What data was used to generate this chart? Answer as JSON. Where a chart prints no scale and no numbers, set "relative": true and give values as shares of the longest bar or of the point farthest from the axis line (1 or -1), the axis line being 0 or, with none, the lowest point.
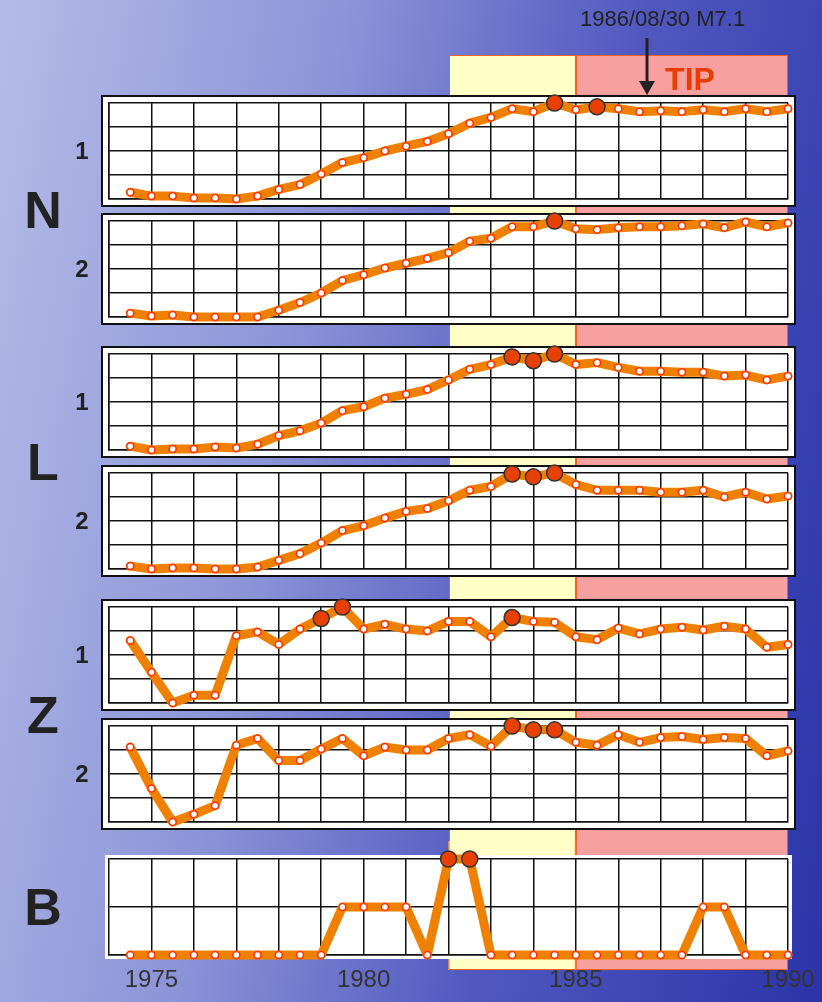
{
  "chart_data": [
    {
      "type": "line",
      "title": "N",
      "ylabel": "1",
      "relative": true,
      "categories": [
        null,
        null,
        null,
        null,
        null,
        null,
        null,
        null,
        null,
        null,
        null,
        null,
        null,
        null,
        null,
        null,
        null,
        null,
        null,
        null,
        null,
        null,
        null,
        null,
        null,
        null,
        null,
        null,
        null,
        null,
        null,
        null
      ],
      "grid": true,
      "marker": "circle",
      "annotations": [
        "1986/08/30 M7.1",
        "TIP"
      ],
      "series": [
        {
          "color": "#f08000",
          "values": [
            0.07,
            0.03,
            0.03,
            0.01,
            0.01,
            0.0,
            0.03,
            0.1,
            0.15,
            0.26,
            0.38,
            0.43,
            0.5,
            0.55,
            0.6,
            0.68,
            0.79,
            0.85,
            0.94,
            0.91,
            1,
            0.93,
            0.96,
            0.94,
            0.91,
            0.92,
            0.91,
            0.93,
            0.91,
            0.94,
            0.91,
            0.94
          ],
          "colors": [
            "#ffffff",
            "#ffffff",
            "#ffffff",
            "#ffffff",
            "#ffffff",
            "#ffffff",
            "#ffffff",
            "#ffffff",
            "#ffffff",
            "#ffffff",
            "#ffffff",
            "#ffffff",
            "#ffffff",
            "#ffffff",
            "#ffffff",
            "#ffffff",
            "#ffffff",
            "#ffffff",
            "#ffffff",
            "#ffffff",
            "#e84000",
            "#ffffff",
            "#e84000",
            "#ffffff",
            "#ffffff",
            "#ffffff",
            "#ffffff",
            "#ffffff",
            "#ffffff",
            "#ffffff",
            "#ffffff",
            "#ffffff"
          ]
        }
      ]
    },
    {
      "type": "line",
      "ylabel": "2",
      "relative": true,
      "categories": [
        null,
        null,
        null,
        null,
        null,
        null,
        null,
        null,
        null,
        null,
        null,
        null,
        null,
        null,
        null,
        null,
        null,
        null,
        null,
        null,
        null,
        null,
        null,
        null,
        null,
        null,
        null,
        null,
        null,
        null,
        null,
        null
      ],
      "grid": true,
      "marker": "circle",
      "series": [
        {
          "color": "#f08000",
          "values": [
            0.04,
            0.01,
            0.02,
            0.0,
            0,
            0,
            0.0,
            0.07,
            0.15,
            0.25,
            0.38,
            0.44,
            0.51,
            0.56,
            0.61,
            0.67,
            0.79,
            0.82,
            0.94,
            0.94,
            1,
            0.92,
            0.91,
            0.93,
            0.94,
            0.94,
            0.95,
            0.97,
            0.93,
            0.99,
            0.94,
            0.98
          ],
          "colors": [
            "#ffffff",
            "#ffffff",
            "#ffffff",
            "#ffffff",
            "#ffffff",
            "#ffffff",
            "#ffffff",
            "#ffffff",
            "#ffffff",
            "#ffffff",
            "#ffffff",
            "#ffffff",
            "#ffffff",
            "#ffffff",
            "#ffffff",
            "#ffffff",
            "#ffffff",
            "#ffffff",
            "#ffffff",
            "#ffffff",
            "#e84000",
            "#ffffff",
            "#ffffff",
            "#ffffff",
            "#ffffff",
            "#ffffff",
            "#ffffff",
            "#ffffff",
            "#ffffff",
            "#ffffff",
            "#ffffff",
            "#ffffff"
          ]
        }
      ]
    },
    {
      "type": "line",
      "title": "L",
      "ylabel": "1",
      "relative": true,
      "categories": [
        null,
        null,
        null,
        null,
        null,
        null,
        null,
        null,
        null,
        null,
        null,
        null,
        null,
        null,
        null,
        null,
        null,
        null,
        null,
        null,
        null,
        null,
        null,
        null,
        null,
        null,
        null,
        null,
        null,
        null,
        null,
        null
      ],
      "grid": true,
      "marker": "circle",
      "series": [
        {
          "color": "#f08000",
          "values": [
            0.04,
            0,
            0.01,
            0.01,
            0.03,
            0.02,
            0.06,
            0.15,
            0.2,
            0.28,
            0.41,
            0.45,
            0.54,
            0.58,
            0.63,
            0.73,
            0.84,
            0.89,
            0.97,
            0.93,
            1,
            0.89,
            0.91,
            0.86,
            0.82,
            0.82,
            0.81,
            0.81,
            0.77,
            0.78,
            0.73,
            0.77
          ],
          "colors": [
            "#ffffff",
            "#ffffff",
            "#ffffff",
            "#ffffff",
            "#ffffff",
            "#ffffff",
            "#ffffff",
            "#ffffff",
            "#ffffff",
            "#ffffff",
            "#ffffff",
            "#ffffff",
            "#ffffff",
            "#ffffff",
            "#ffffff",
            "#ffffff",
            "#ffffff",
            "#ffffff",
            "#e84000",
            "#e84000",
            "#e84000",
            "#ffffff",
            "#ffffff",
            "#ffffff",
            "#ffffff",
            "#ffffff",
            "#ffffff",
            "#ffffff",
            "#ffffff",
            "#ffffff",
            "#ffffff",
            "#ffffff"
          ]
        }
      ]
    },
    {
      "type": "line",
      "ylabel": "2",
      "relative": true,
      "categories": [
        null,
        null,
        null,
        null,
        null,
        null,
        null,
        null,
        null,
        null,
        null,
        null,
        null,
        null,
        null,
        null,
        null,
        null,
        null,
        null,
        null,
        null,
        null,
        null,
        null,
        null,
        null,
        null,
        null,
        null,
        null,
        null
      ],
      "grid": true,
      "marker": "circle",
      "series": [
        {
          "color": "#f08000",
          "values": [
            0.03,
            0,
            0.01,
            0.01,
            0,
            0,
            0.02,
            0.09,
            0.16,
            0.27,
            0.4,
            0.45,
            0.53,
            0.6,
            0.63,
            0.71,
            0.82,
            0.86,
            0.99,
            0.96,
            1,
            0.88,
            0.82,
            0.82,
            0.82,
            0.8,
            0.8,
            0.82,
            0.75,
            0.8,
            0.73,
            0.76
          ],
          "colors": [
            "#ffffff",
            "#ffffff",
            "#ffffff",
            "#ffffff",
            "#ffffff",
            "#ffffff",
            "#ffffff",
            "#ffffff",
            "#ffffff",
            "#ffffff",
            "#ffffff",
            "#ffffff",
            "#ffffff",
            "#ffffff",
            "#ffffff",
            "#ffffff",
            "#ffffff",
            "#ffffff",
            "#e84000",
            "#e84000",
            "#e84000",
            "#ffffff",
            "#ffffff",
            "#ffffff",
            "#ffffff",
            "#ffffff",
            "#ffffff",
            "#ffffff",
            "#ffffff",
            "#ffffff",
            "#ffffff",
            "#ffffff"
          ]
        }
      ]
    },
    {
      "type": "line",
      "title": "Z",
      "ylabel": "1",
      "relative": true,
      "categories": [
        null,
        null,
        null,
        null,
        null,
        null,
        null,
        null,
        null,
        null,
        null,
        null,
        null,
        null,
        null,
        null,
        null,
        null,
        null,
        null,
        null,
        null,
        null,
        null,
        null,
        null,
        null,
        null,
        null,
        null,
        null,
        null
      ],
      "grid": true,
      "marker": "circle",
      "series": [
        {
          "color": "#f08000",
          "values": [
            0.65,
            0.32,
            0,
            0.08,
            0.08,
            0.7,
            0.74,
            0.61,
            0.77,
            0.88,
            1,
            0.77,
            0.82,
            0.77,
            0.75,
            0.85,
            0.85,
            0.69,
            0.89,
            0.85,
            0.84,
            0.69,
            0.66,
            0.78,
            0.72,
            0.77,
            0.79,
            0.76,
            0.8,
            0.77,
            0.58,
            0.61
          ],
          "colors": [
            "#ffffff",
            "#ffffff",
            "#ffffff",
            "#ffffff",
            "#ffffff",
            "#ffffff",
            "#ffffff",
            "#ffffff",
            "#ffffff",
            "#e84000",
            "#e84000",
            "#ffffff",
            "#ffffff",
            "#ffffff",
            "#ffffff",
            "#ffffff",
            "#ffffff",
            "#ffffff",
            "#e84000",
            "#ffffff",
            "#ffffff",
            "#ffffff",
            "#ffffff",
            "#ffffff",
            "#ffffff",
            "#ffffff",
            "#ffffff",
            "#ffffff",
            "#ffffff",
            "#ffffff",
            "#ffffff",
            "#ffffff"
          ]
        }
      ]
    },
    {
      "type": "line",
      "ylabel": "2",
      "relative": true,
      "categories": [
        null,
        null,
        null,
        null,
        null,
        null,
        null,
        null,
        null,
        null,
        null,
        null,
        null,
        null,
        null,
        null,
        null,
        null,
        null,
        null,
        null,
        null,
        null,
        null,
        null,
        null,
        null,
        null,
        null,
        null,
        null,
        null
      ],
      "grid": true,
      "marker": "circle",
      "series": [
        {
          "color": "#f08000",
          "values": [
            0.78,
            0.35,
            0,
            0.08,
            0.17,
            0.8,
            0.87,
            0.64,
            0.64,
            0.76,
            0.87,
            0.69,
            0.78,
            0.75,
            0.75,
            0.87,
            0.91,
            0.79,
            1,
            0.96,
            0.96,
            0.83,
            0.8,
            0.91,
            0.83,
            0.88,
            0.89,
            0.86,
            0.88,
            0.87,
            0.69,
            0.74
          ],
          "colors": [
            "#ffffff",
            "#ffffff",
            "#ffffff",
            "#ffffff",
            "#ffffff",
            "#ffffff",
            "#ffffff",
            "#ffffff",
            "#ffffff",
            "#ffffff",
            "#ffffff",
            "#ffffff",
            "#ffffff",
            "#ffffff",
            "#ffffff",
            "#ffffff",
            "#ffffff",
            "#ffffff",
            "#e84000",
            "#e84000",
            "#e84000",
            "#ffffff",
            "#ffffff",
            "#ffffff",
            "#ffffff",
            "#ffffff",
            "#ffffff",
            "#ffffff",
            "#ffffff",
            "#ffffff",
            "#ffffff",
            "#ffffff"
          ]
        }
      ]
    },
    {
      "type": "line",
      "title": "B",
      "relative": true,
      "x": [
        1974.5,
        1975,
        1975.5,
        1976,
        1976.5,
        1977,
        1977.5,
        1978,
        1978.5,
        1979,
        1979.5,
        1980,
        1980.5,
        1981,
        1981.5,
        1982,
        1982.5,
        1983,
        1983.5,
        1984,
        1984.5,
        1985,
        1985.5,
        1986,
        1986.5,
        1987,
        1987.5,
        1988,
        1988.5,
        1989,
        1989.5,
        1990
      ],
      "xlim": [
        1974,
        1990
      ],
      "xticks": [
        1975,
        {
          "value": 1976,
          "label": null
        },
        {
          "value": 1977,
          "label": null
        },
        {
          "value": 1978,
          "label": null
        },
        {
          "value": 1979,
          "label": null
        },
        1980,
        {
          "value": 1981,
          "label": null
        },
        {
          "value": 1982,
          "label": null
        },
        {
          "value": 1983,
          "label": null
        },
        {
          "value": 1984,
          "label": null
        },
        1985,
        {
          "value": 1986,
          "label": null
        },
        {
          "value": 1987,
          "label": null
        },
        {
          "value": 1988,
          "label": null
        },
        {
          "value": 1989,
          "label": null
        },
        1990
      ],
      "tick_labels": "x",
      "grid": true,
      "marker": "circle",
      "bands": [
        {
          "axis": "x",
          "from": 1982,
          "to": 1985,
          "color": "#ffffc8"
        },
        {
          "axis": "x",
          "from": 1985,
          "to": 1990,
          "color": "#f8a0a0"
        }
      ],
      "series": [
        {
          "color": "#f08000",
          "values": [
            0,
            0,
            0,
            0,
            0,
            0,
            0,
            0,
            0,
            0,
            0.5,
            0.5,
            0.5,
            0.5,
            0,
            1,
            1,
            0,
            0,
            0,
            0,
            0,
            0,
            0,
            0,
            0,
            0,
            0.5,
            0.5,
            0,
            0,
            0
          ],
          "colors": [
            "#ffffff",
            "#ffffff",
            "#ffffff",
            "#ffffff",
            "#ffffff",
            "#ffffff",
            "#ffffff",
            "#ffffff",
            "#ffffff",
            "#ffffff",
            "#ffffff",
            "#ffffff",
            "#ffffff",
            "#ffffff",
            "#ffffff",
            "#e84000",
            "#e84000",
            "#ffffff",
            "#ffffff",
            "#ffffff",
            "#ffffff",
            "#ffffff",
            "#ffffff",
            "#ffffff",
            "#ffffff",
            "#ffffff",
            "#ffffff",
            "#ffffff",
            "#ffffff",
            "#ffffff",
            "#ffffff",
            "#ffffff"
          ]
        }
      ]
    }
  ]
}
